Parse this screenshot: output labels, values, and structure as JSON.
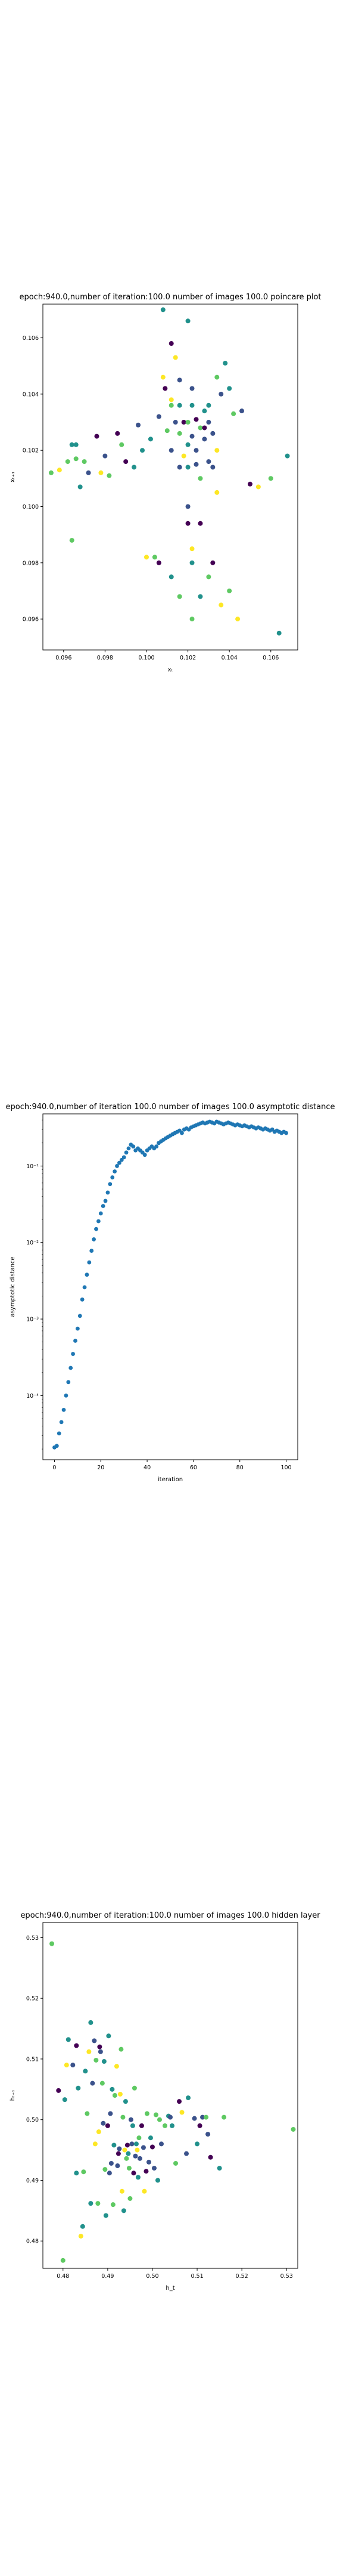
{
  "palette": [
    "#440154",
    "#3b528b",
    "#21918c",
    "#5ec962",
    "#fde725"
  ],
  "charts": [
    {
      "type": "scatter",
      "title": "epoch:940.0,number of iteration:100.0 number of images 100.0 poincare plot",
      "xlabel": "xₜ",
      "ylabel": "xₜ₊₁",
      "xlim": [
        0.095,
        0.1073
      ],
      "ylim": [
        0.0949,
        0.1072
      ],
      "xticks": [
        0.096,
        0.098,
        0.1,
        0.102,
        0.104,
        0.106
      ],
      "yticks": [
        0.096,
        0.098,
        0.1,
        0.102,
        0.104,
        0.106
      ],
      "tick_decimals": 3
    },
    {
      "type": "line",
      "title": "epoch:940.0,number of iteration 100.0  number of images 100.0 asymptotic distance",
      "xlabel": "iteration",
      "ylabel": "asymptotic distance",
      "yscale": "log",
      "xlim": [
        -5,
        105
      ],
      "xticks": [
        0,
        20,
        40,
        60,
        80,
        100
      ],
      "yticks": [
        "10⁻⁴",
        "10⁻³",
        "10⁻²",
        "10⁻¹"
      ]
    },
    {
      "type": "scatter",
      "title": "epoch:940.0,number of iteration:100.0  number of images 100.0 hidden layer",
      "xlabel": "h_t",
      "ylabel": "hₜ₊₁",
      "xlim": [
        0.4755,
        0.5325
      ],
      "ylim": [
        0.4755,
        0.5325
      ],
      "xticks": [
        0.48,
        0.49,
        0.5,
        0.51,
        0.52,
        0.53
      ],
      "yticks": [
        0.48,
        0.49,
        0.5,
        0.51,
        0.52,
        0.53
      ],
      "tick_decimals": 2
    }
  ],
  "chart_data": [
    {
      "type": "scatter",
      "title": "epoch:940.0,number of iteration:100.0 number of images 100.0 poincare plot",
      "xlabel": "xₜ",
      "ylabel": "xₜ₊₁",
      "xlim": [
        0.095,
        0.1073
      ],
      "ylim": [
        0.0949,
        0.1072
      ],
      "color_map": "viridis",
      "points": [
        [
          0.0954,
          0.1012,
          3
        ],
        [
          0.0958,
          0.1013,
          4
        ],
        [
          0.0962,
          0.1016,
          3
        ],
        [
          0.0964,
          0.1022,
          2
        ],
        [
          0.0966,
          0.1022,
          2
        ],
        [
          0.0966,
          0.1017,
          3
        ],
        [
          0.097,
          0.1016,
          3
        ],
        [
          0.0968,
          0.1007,
          2
        ],
        [
          0.0964,
          0.0988,
          3
        ],
        [
          0.0972,
          0.1012,
          1
        ],
        [
          0.0976,
          0.1025,
          0
        ],
        [
          0.0978,
          0.1012,
          4
        ],
        [
          0.0982,
          0.1011,
          3
        ],
        [
          0.098,
          0.1018,
          1
        ],
        [
          0.0986,
          0.1026,
          0
        ],
        [
          0.0988,
          0.1022,
          3
        ],
        [
          0.099,
          0.1016,
          0
        ],
        [
          0.0994,
          0.1014,
          2
        ],
        [
          0.0996,
          0.1029,
          1
        ],
        [
          0.0998,
          0.102,
          2
        ],
        [
          0.1002,
          0.1024,
          2
        ],
        [
          0.1,
          0.0982,
          4
        ],
        [
          0.1004,
          0.0982,
          3
        ],
        [
          0.1006,
          0.098,
          0
        ],
        [
          0.1006,
          0.1032,
          1
        ],
        [
          0.1008,
          0.1046,
          4
        ],
        [
          0.1008,
          0.107,
          2
        ],
        [
          0.1009,
          0.1042,
          0
        ],
        [
          0.101,
          0.1027,
          3
        ],
        [
          0.1012,
          0.1038,
          4
        ],
        [
          0.1012,
          0.1036,
          3
        ],
        [
          0.1014,
          0.103,
          1
        ],
        [
          0.1012,
          0.1058,
          0
        ],
        [
          0.1014,
          0.1053,
          4
        ],
        [
          0.1012,
          0.102,
          1
        ],
        [
          0.1016,
          0.1026,
          3
        ],
        [
          0.1016,
          0.1045,
          1
        ],
        [
          0.1018,
          0.103,
          0
        ],
        [
          0.1018,
          0.1018,
          4
        ],
        [
          0.1016,
          0.1036,
          2
        ],
        [
          0.1016,
          0.1014,
          1
        ],
        [
          0.102,
          0.103,
          3
        ],
        [
          0.102,
          0.1066,
          2
        ],
        [
          0.102,
          0.1022,
          2
        ],
        [
          0.102,
          0.1014,
          2
        ],
        [
          0.1022,
          0.1025,
          1
        ],
        [
          0.1022,
          0.1036,
          2
        ],
        [
          0.1022,
          0.1042,
          1
        ],
        [
          0.1024,
          0.1031,
          0
        ],
        [
          0.1024,
          0.102,
          1
        ],
        [
          0.1024,
          0.1015,
          1
        ],
        [
          0.1026,
          0.1028,
          3
        ],
        [
          0.1026,
          0.101,
          3
        ],
        [
          0.1028,
          0.1028,
          0
        ],
        [
          0.1028,
          0.1034,
          2
        ],
        [
          0.1028,
          0.1024,
          1
        ],
        [
          0.103,
          0.103,
          1
        ],
        [
          0.103,
          0.1036,
          2
        ],
        [
          0.103,
          0.1016,
          1
        ],
        [
          0.1032,
          0.1026,
          1
        ],
        [
          0.1032,
          0.1014,
          1
        ],
        [
          0.1034,
          0.102,
          4
        ],
        [
          0.1034,
          0.1046,
          3
        ],
        [
          0.1034,
          0.1005,
          4
        ],
        [
          0.1036,
          0.104,
          1
        ],
        [
          0.1038,
          0.1051,
          2
        ],
        [
          0.104,
          0.1042,
          2
        ],
        [
          0.1042,
          0.1033,
          3
        ],
        [
          0.1046,
          0.1034,
          1
        ],
        [
          0.105,
          0.1008,
          0
        ],
        [
          0.1054,
          0.1007,
          4
        ],
        [
          0.106,
          0.101,
          3
        ],
        [
          0.1068,
          0.1018,
          2
        ],
        [
          0.1064,
          0.0955,
          2
        ],
        [
          0.1044,
          0.096,
          4
        ],
        [
          0.104,
          0.097,
          3
        ],
        [
          0.1036,
          0.0965,
          4
        ],
        [
          0.1032,
          0.098,
          0
        ],
        [
          0.103,
          0.0975,
          3
        ],
        [
          0.1026,
          0.0968,
          2
        ],
        [
          0.1022,
          0.0985,
          4
        ],
        [
          0.1022,
          0.098,
          2
        ],
        [
          0.1022,
          0.096,
          3
        ],
        [
          0.1016,
          0.0968,
          3
        ],
        [
          0.1012,
          0.0975,
          2
        ],
        [
          0.102,
          0.1,
          1
        ],
        [
          0.102,
          0.0994,
          0
        ],
        [
          0.1026,
          0.0994,
          0
        ]
      ]
    },
    {
      "type": "line",
      "title": "epoch:940.0,number of iteration 100.0  number of images 100.0 asymptotic distance",
      "xlabel": "iteration",
      "ylabel": "asymptotic distance",
      "yscale": "log",
      "xlim": [
        -5,
        105
      ],
      "x": [
        0,
        1,
        2,
        3,
        4,
        5,
        6,
        7,
        8,
        9,
        10,
        11,
        12,
        13,
        14,
        15,
        16,
        17,
        18,
        19,
        20,
        21,
        22,
        23,
        24,
        25,
        26,
        27,
        28,
        29,
        30,
        31,
        32,
        33,
        34,
        35,
        36,
        37,
        38,
        39,
        40,
        41,
        42,
        43,
        44,
        45,
        46,
        47,
        48,
        49,
        50,
        51,
        52,
        53,
        54,
        55,
        56,
        57,
        58,
        59,
        60,
        61,
        62,
        63,
        64,
        65,
        66,
        67,
        68,
        69,
        70,
        71,
        72,
        73,
        74,
        75,
        76,
        77,
        78,
        79,
        80,
        81,
        82,
        83,
        84,
        85,
        86,
        87,
        88,
        89,
        90,
        91,
        92,
        93,
        94,
        95,
        96,
        97,
        98,
        99,
        100
      ],
      "values": [
        2.1e-05,
        2.2e-05,
        3.2e-05,
        4.5e-05,
        6.5e-05,
        0.0001,
        0.00015,
        0.00023,
        0.00035,
        0.00052,
        0.00075,
        0.0011,
        0.0018,
        0.0026,
        0.0038,
        0.0055,
        0.0078,
        0.011,
        0.015,
        0.019,
        0.024,
        0.03,
        0.035,
        0.045,
        0.058,
        0.071,
        0.085,
        0.1,
        0.11,
        0.12,
        0.13,
        0.15,
        0.17,
        0.19,
        0.18,
        0.16,
        0.17,
        0.16,
        0.15,
        0.14,
        0.16,
        0.17,
        0.18,
        0.17,
        0.18,
        0.2,
        0.21,
        0.22,
        0.23,
        0.24,
        0.25,
        0.26,
        0.27,
        0.28,
        0.29,
        0.27,
        0.3,
        0.31,
        0.3,
        0.32,
        0.33,
        0.34,
        0.35,
        0.36,
        0.37,
        0.36,
        0.37,
        0.38,
        0.37,
        0.36,
        0.38,
        0.37,
        0.36,
        0.35,
        0.36,
        0.37,
        0.36,
        0.35,
        0.34,
        0.35,
        0.34,
        0.33,
        0.34,
        0.33,
        0.32,
        0.33,
        0.32,
        0.31,
        0.32,
        0.31,
        0.3,
        0.31,
        0.3,
        0.29,
        0.3,
        0.28,
        0.29,
        0.28,
        0.27,
        0.28,
        0.27
      ]
    },
    {
      "type": "scatter",
      "title": "epoch:940.0,number of iteration:100.0  number of images 100.0 hidden layer",
      "xlabel": "h_t",
      "ylabel": "hₜ₊₁",
      "xlim": [
        0.4755,
        0.5325
      ],
      "ylim": [
        0.4755,
        0.5325
      ],
      "color_map": "viridis",
      "points": [
        [
          0.4775,
          0.529,
          3
        ],
        [
          0.479,
          0.5048,
          0
        ],
        [
          0.48,
          0.4768,
          3
        ],
        [
          0.4804,
          0.5033,
          2
        ],
        [
          0.4808,
          0.509,
          4
        ],
        [
          0.4812,
          0.5132,
          2
        ],
        [
          0.4822,
          0.509,
          1
        ],
        [
          0.483,
          0.5122,
          0
        ],
        [
          0.483,
          0.4912,
          2
        ],
        [
          0.4834,
          0.5052,
          2
        ],
        [
          0.484,
          0.4808,
          4
        ],
        [
          0.4844,
          0.4824,
          2
        ],
        [
          0.4846,
          0.4914,
          3
        ],
        [
          0.485,
          0.508,
          2
        ],
        [
          0.4854,
          0.501,
          3
        ],
        [
          0.4858,
          0.5112,
          4
        ],
        [
          0.4862,
          0.516,
          2
        ],
        [
          0.4862,
          0.4862,
          2
        ],
        [
          0.4866,
          0.506,
          1
        ],
        [
          0.487,
          0.513,
          1
        ],
        [
          0.4872,
          0.496,
          4
        ],
        [
          0.4874,
          0.5098,
          3
        ],
        [
          0.4878,
          0.4862,
          3
        ],
        [
          0.488,
          0.498,
          4
        ],
        [
          0.4882,
          0.512,
          0
        ],
        [
          0.4884,
          0.5112,
          1
        ],
        [
          0.4888,
          0.506,
          3
        ],
        [
          0.489,
          0.4994,
          1
        ],
        [
          0.4892,
          0.5096,
          2
        ],
        [
          0.4894,
          0.4918,
          3
        ],
        [
          0.4896,
          0.4842,
          2
        ],
        [
          0.49,
          0.499,
          0
        ],
        [
          0.4902,
          0.5138,
          2
        ],
        [
          0.4904,
          0.4912,
          1
        ],
        [
          0.4906,
          0.501,
          1
        ],
        [
          0.4908,
          0.4928,
          1
        ],
        [
          0.491,
          0.505,
          2
        ],
        [
          0.4912,
          0.486,
          3
        ],
        [
          0.4914,
          0.4958,
          2
        ],
        [
          0.4916,
          0.504,
          3
        ],
        [
          0.492,
          0.5088,
          4
        ],
        [
          0.4922,
          0.4924,
          1
        ],
        [
          0.4924,
          0.4944,
          0
        ],
        [
          0.4926,
          0.4952,
          1
        ],
        [
          0.4928,
          0.5042,
          4
        ],
        [
          0.493,
          0.5116,
          3
        ],
        [
          0.4932,
          0.4882,
          4
        ],
        [
          0.4934,
          0.5004,
          3
        ],
        [
          0.4936,
          0.485,
          2
        ],
        [
          0.4938,
          0.495,
          4
        ],
        [
          0.494,
          0.503,
          2
        ],
        [
          0.4942,
          0.4936,
          3
        ],
        [
          0.4944,
          0.4958,
          0
        ],
        [
          0.4946,
          0.4944,
          2
        ],
        [
          0.4948,
          0.492,
          3
        ],
        [
          0.495,
          0.487,
          3
        ],
        [
          0.4952,
          0.5,
          1
        ],
        [
          0.4954,
          0.496,
          1
        ],
        [
          0.4956,
          0.499,
          2
        ],
        [
          0.4958,
          0.4912,
          0
        ],
        [
          0.496,
          0.5052,
          3
        ],
        [
          0.4962,
          0.494,
          1
        ],
        [
          0.4964,
          0.496,
          2
        ],
        [
          0.4966,
          0.495,
          4
        ],
        [
          0.4968,
          0.4905,
          2
        ],
        [
          0.497,
          0.497,
          3
        ],
        [
          0.4972,
          0.4936,
          1
        ],
        [
          0.4976,
          0.499,
          0
        ],
        [
          0.498,
          0.4954,
          1
        ],
        [
          0.4982,
          0.4882,
          4
        ],
        [
          0.4986,
          0.4915,
          0
        ],
        [
          0.4988,
          0.501,
          3
        ],
        [
          0.4992,
          0.493,
          1
        ],
        [
          0.4996,
          0.497,
          2
        ],
        [
          0.5,
          0.4955,
          0
        ],
        [
          0.5004,
          0.492,
          1
        ],
        [
          0.5008,
          0.5008,
          3
        ],
        [
          0.5012,
          0.49,
          2
        ],
        [
          0.5016,
          0.5,
          3
        ],
        [
          0.502,
          0.496,
          1
        ],
        [
          0.5028,
          0.499,
          3
        ],
        [
          0.5036,
          0.5006,
          2
        ],
        [
          0.504,
          0.5004,
          1
        ],
        [
          0.5044,
          0.499,
          2
        ],
        [
          0.5052,
          0.4928,
          3
        ],
        [
          0.506,
          0.503,
          0
        ],
        [
          0.5066,
          0.5012,
          4
        ],
        [
          0.5076,
          0.4944,
          1
        ],
        [
          0.508,
          0.5036,
          2
        ],
        [
          0.5094,
          0.5002,
          1
        ],
        [
          0.51,
          0.496,
          2
        ],
        [
          0.5106,
          0.499,
          0
        ],
        [
          0.5112,
          0.5004,
          1
        ],
        [
          0.512,
          0.5004,
          3
        ],
        [
          0.5124,
          0.4976,
          1
        ],
        [
          0.513,
          0.4938,
          0
        ],
        [
          0.515,
          0.492,
          2
        ],
        [
          0.516,
          0.5004,
          3
        ],
        [
          0.5315,
          0.4984,
          3
        ]
      ]
    }
  ]
}
